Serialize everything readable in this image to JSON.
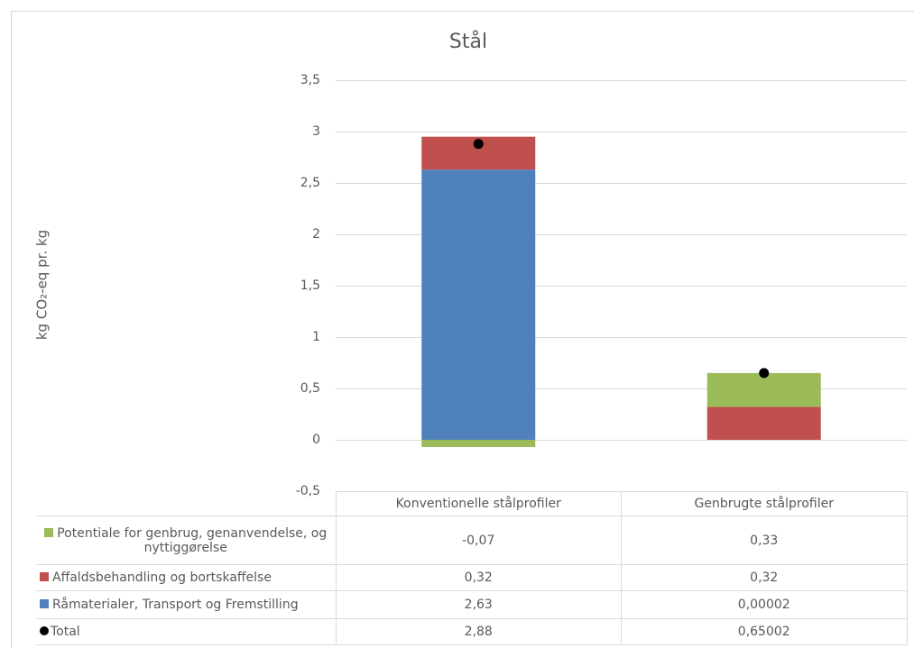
{
  "chart_data": {
    "type": "stacked_bar",
    "title": "Stål",
    "y_label": "kg CO₂-eq pr. kg",
    "categories": [
      "Konventionelle stålprofiler",
      "Genbrugte stålprofiler"
    ],
    "series": [
      {
        "name": "Potentiale for genbrug, genanvendelse, og nyttiggørelse",
        "color": "#9bbb59",
        "values": [
          -0.07,
          0.33
        ],
        "value_labels": [
          "-0,07",
          "0,33"
        ]
      },
      {
        "name": "Affaldsbehandling og bortskaffelse",
        "color": "#c0504d",
        "values": [
          0.32,
          0.32
        ],
        "value_labels": [
          "0,32",
          "0,32"
        ]
      },
      {
        "name": "Råmaterialer, Transport og Fremstilling",
        "color": "#4f81bd",
        "values": [
          2.63,
          2e-05
        ],
        "value_labels": [
          "2,63",
          "0,00002"
        ]
      },
      {
        "name": "Total",
        "color": "#000000",
        "type": "dot",
        "values": [
          2.88,
          0.65002
        ],
        "value_labels": [
          "2,88",
          "0,65002"
        ]
      }
    ],
    "ylim": [
      -0.5,
      3.5
    ],
    "yticks": [
      {
        "value": -0.5,
        "label": "-0,5"
      },
      0,
      {
        "value": 0.5,
        "label": "0,5"
      },
      1,
      {
        "value": 1.5,
        "label": "1,5"
      },
      2,
      {
        "value": 2.5,
        "label": "2,5"
      },
      3,
      {
        "value": 3.5,
        "label": "3,5"
      }
    ],
    "grid": true
  }
}
